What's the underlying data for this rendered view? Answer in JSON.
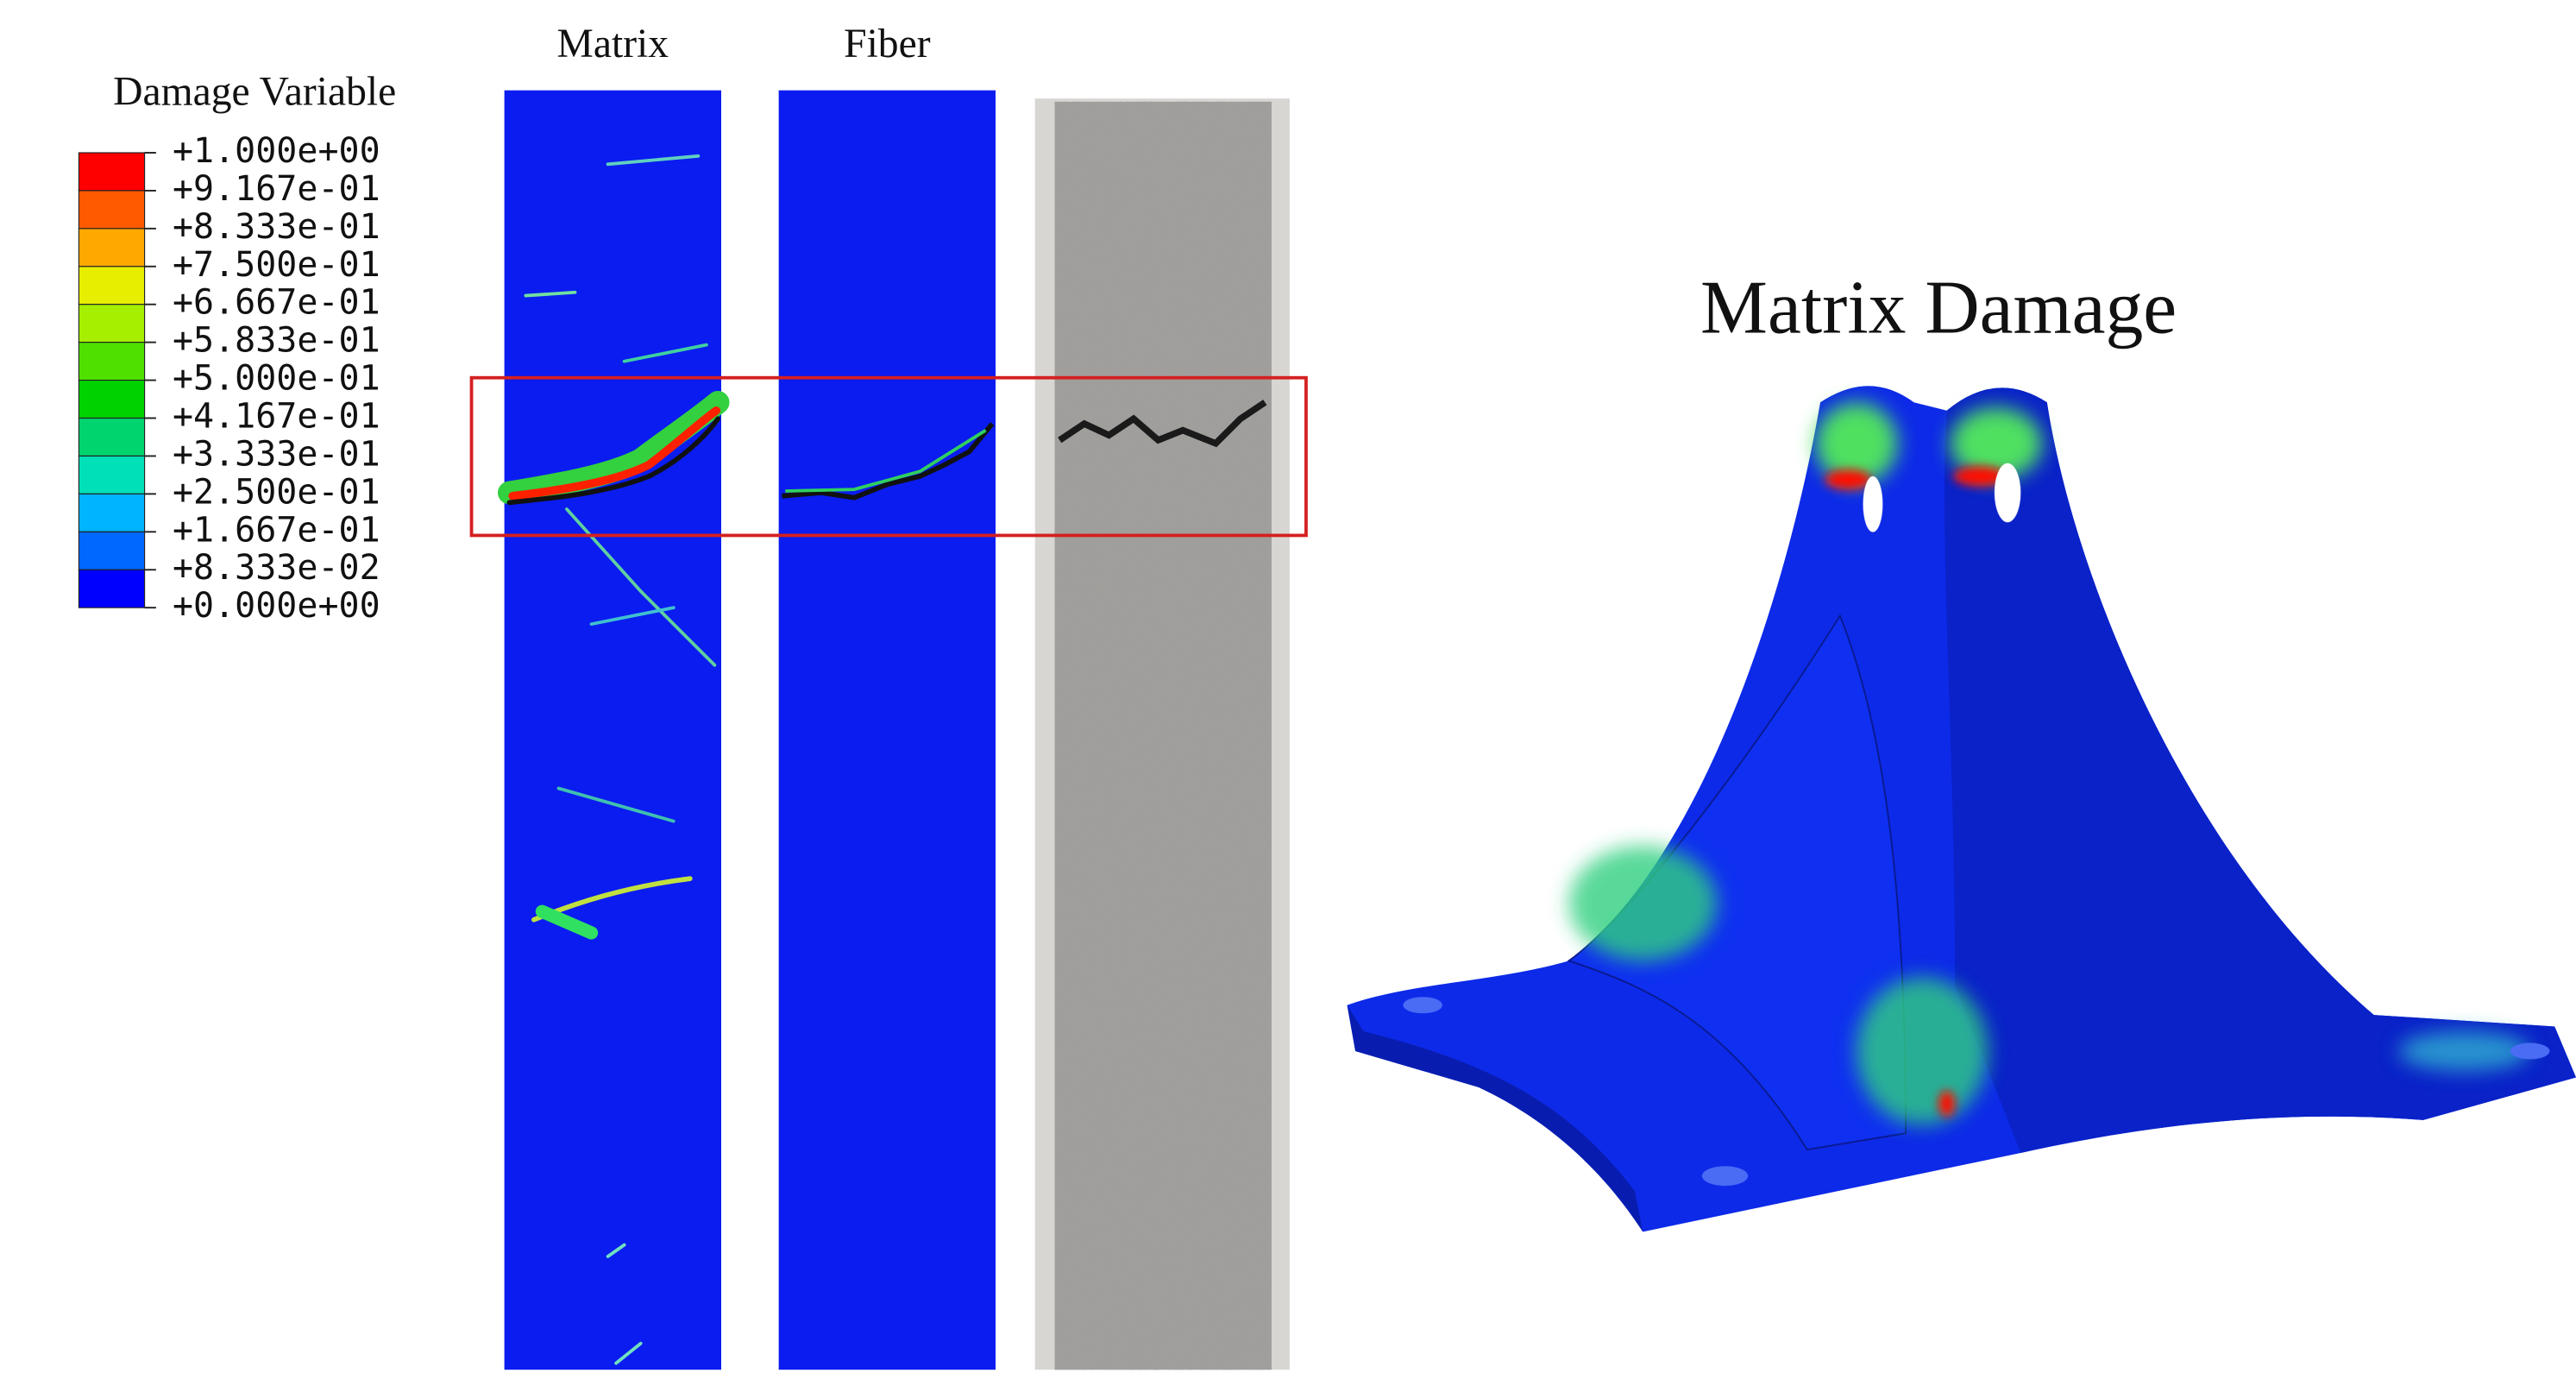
{
  "legend": {
    "title": "Damage Variable",
    "labels": [
      "+1.000e+00",
      "+9.167e-01",
      "+8.333e-01",
      "+7.500e-01",
      "+6.667e-01",
      "+5.833e-01",
      "+5.000e-01",
      "+4.167e-01",
      "+3.333e-01",
      "+2.500e-01",
      "+1.667e-01",
      "+8.333e-02",
      "+0.000e+00"
    ]
  },
  "panels": {
    "matrix": "Matrix",
    "fiber": "Fiber"
  },
  "part": {
    "title": "Matrix Damage"
  }
}
